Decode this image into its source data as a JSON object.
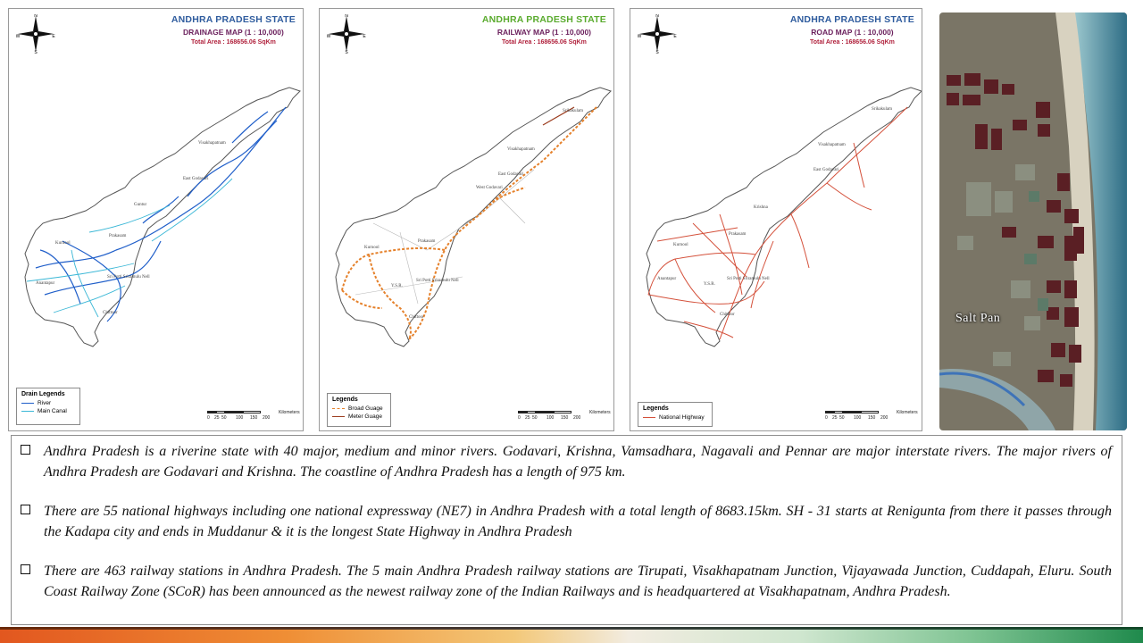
{
  "maps": {
    "drainage": {
      "state_title": "ANDHRA PRADESH STATE",
      "map_title": "DRAINAGE MAP (1 : 10,000)",
      "area": "Total Area : 168656.06 SqKm",
      "state_color": "#2f5c9e",
      "subtitle_color": "#6a1f5c",
      "legend": {
        "title": "Drain Legends",
        "items": [
          {
            "label": "River",
            "color": "#1f5ec9"
          },
          {
            "label": "Main Canal",
            "color": "#3ab7d6"
          }
        ]
      }
    },
    "railway": {
      "state_title": "ANDHRA PRADESH STATE",
      "map_title": "RAILWAY MAP (1 : 10,000)",
      "area": "Total Area : 168656.06 SqKm",
      "state_color": "#5aab2e",
      "subtitle_color": "#6a1f5c",
      "legend": {
        "title": "Legends",
        "items": [
          {
            "label": "Broad Guage",
            "color": "#e5812b"
          },
          {
            "label": "Meter Guage",
            "color": "#9b3c1e"
          }
        ]
      }
    },
    "road": {
      "state_title": "ANDHRA PRADESH STATE",
      "map_title": "ROAD MAP (1 : 10,000)",
      "area": "Total Area : 168656.06 SqKm",
      "state_color": "#2f5c9e",
      "subtitle_color": "#6a1f5c",
      "legend": {
        "title": "Legends",
        "items": [
          {
            "label": "National Highway",
            "color": "#d4503a"
          }
        ]
      }
    },
    "scale": {
      "ticks": [
        "0",
        "25",
        "50",
        "100",
        "150",
        "200"
      ],
      "unit": "Kilometers"
    },
    "compass": {
      "n": "N",
      "s": "S",
      "e": "E",
      "w": "W"
    },
    "places": {
      "srikakulam": "Srikakulam",
      "visakhapatnam": "Visakhapatnam",
      "east_godavari": "East Godavari",
      "west_godavari": "West Godavari",
      "krishna": "Krishna",
      "guntur": "Guntur",
      "prakasam": "Prakasam",
      "kurnool": "Kurnool",
      "anantapur": "Anantapur",
      "ysr": "Y.S.R.",
      "nellore": "Sri Potti Sriramulu Nell",
      "chittoor": "Chittoor"
    }
  },
  "photo": {
    "label": "Salt Pan"
  },
  "bullets": [
    "Andhra Pradesh is a riverine state with 40 major, medium and minor rivers. Godavari, Krishna, Vamsadhara, Nagavali and Pennar are major interstate rivers. The major rivers  of Andhra Pradesh are Godavari and Krishna. The coastline of Andhra Pradesh has a length of 975 km.",
    "There are 55 national highways including one national expressway (NE7) in Andhra Pradesh with a total length of 8683.15km. SH - 31 starts at Renigunta from there it passes through the Kadapa city and ends in Muddanur & it is the longest State Highway in Andhra Pradesh",
    "There are 463 railway stations in Andhra Pradesh. The 5 main Andhra Pradesh railway stations are Tirupati, Visakhapatnam Junction, Vijayawada Junction, Cuddapah, Eluru. South Coast Railway Zone (SCoR) has been announced as the newest railway zone of the Indian Railways and is headquartered at Visakhapatnam, Andhra Pradesh."
  ]
}
